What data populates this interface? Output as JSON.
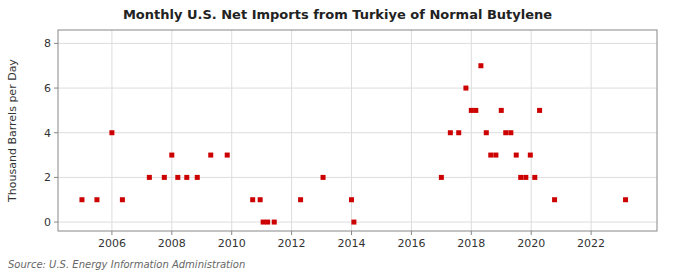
{
  "chart_data": {
    "type": "scatter",
    "title": "Monthly U.S. Net Imports from Turkiye of Normal Butylene",
    "ylabel": "Thousand Barrels per Day",
    "source": "Source: U.S. Energy Information Administration",
    "color": "#cc0000",
    "marker": "square",
    "grid": true,
    "xlim": [
      2004.2,
      2024.2
    ],
    "ylim": [
      -0.4,
      8.6
    ],
    "xticks": [
      2006,
      2008,
      2010,
      2012,
      2014,
      2016,
      2018,
      2020,
      2022
    ],
    "yticks": [
      0,
      2,
      4,
      6,
      8
    ],
    "x": [
      2005.0,
      2005.5,
      2006.0,
      2006.35,
      2007.25,
      2007.75,
      2008.0,
      2008.2,
      2008.5,
      2008.85,
      2009.3,
      2009.85,
      2010.7,
      2010.95,
      2011.05,
      2011.2,
      2011.42,
      2012.3,
      2013.05,
      2014.0,
      2014.08,
      2017.0,
      2017.3,
      2017.58,
      2017.82,
      2018.0,
      2018.15,
      2018.32,
      2018.5,
      2018.65,
      2018.82,
      2019.0,
      2019.15,
      2019.32,
      2019.5,
      2019.65,
      2019.82,
      2019.97,
      2020.12,
      2020.28,
      2020.78,
      2023.15
    ],
    "values": [
      1,
      1,
      4,
      1,
      2,
      2,
      3,
      2,
      2,
      2,
      3,
      3,
      1,
      1,
      0,
      0,
      0,
      1,
      2,
      1,
      0,
      2,
      4,
      4,
      6,
      5,
      5,
      7,
      4,
      3,
      3,
      5,
      4,
      4,
      3,
      2,
      2,
      3,
      2,
      5,
      1,
      1
    ]
  }
}
